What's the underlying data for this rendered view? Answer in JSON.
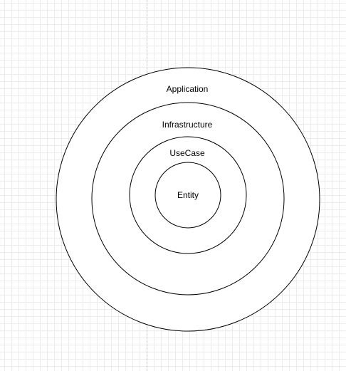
{
  "diagram": {
    "layers": [
      {
        "id": "application",
        "label": "Application"
      },
      {
        "id": "infrastructure",
        "label": "Infrastructure"
      },
      {
        "id": "usecase",
        "label": "UseCase"
      },
      {
        "id": "entity",
        "label": "Entity"
      }
    ]
  }
}
